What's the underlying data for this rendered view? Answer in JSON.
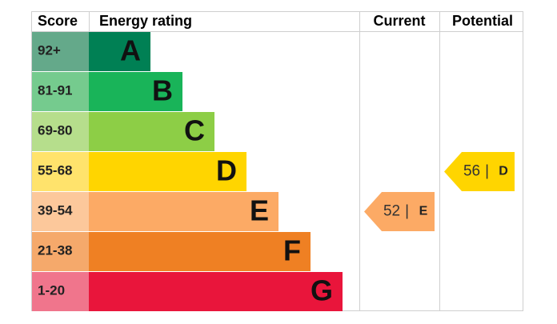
{
  "header": {
    "score": "Score",
    "rating": "Energy rating",
    "current": "Current",
    "potential": "Potential"
  },
  "bands": [
    {
      "score": "92+",
      "letter": "A",
      "color": "#008054",
      "score_color": "#64a98a"
    },
    {
      "score": "81-91",
      "letter": "B",
      "color": "#19b459",
      "score_color": "#75cb8e"
    },
    {
      "score": "69-80",
      "letter": "C",
      "color": "#8dce46",
      "score_color": "#b6de8c"
    },
    {
      "score": "55-68",
      "letter": "D",
      "color": "#ffd500",
      "score_color": "#ffe36c"
    },
    {
      "score": "39-54",
      "letter": "E",
      "color": "#fcaa65",
      "score_color": "#fcc89b"
    },
    {
      "score": "21-38",
      "letter": "F",
      "color": "#ef8023",
      "score_color": "#f5a96b"
    },
    {
      "score": "1-20",
      "letter": "G",
      "color": "#e9153b",
      "score_color": "#f0758c"
    }
  ],
  "current": {
    "value": 52,
    "separator": "|",
    "rating": "E"
  },
  "potential": {
    "value": 56,
    "separator": "|",
    "rating": "D"
  }
}
